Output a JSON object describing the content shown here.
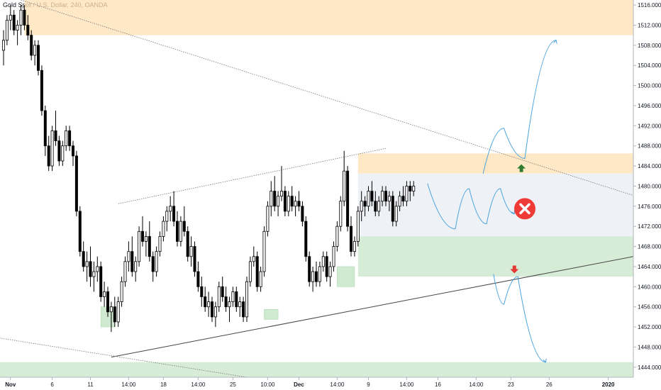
{
  "header": {
    "title": "Gold Spot / U.S. Dollar, 240, OANDA"
  },
  "colors": {
    "candle": "#000000",
    "resistance_zone": "#ffe0b2",
    "support_zone": "#c8e6c9",
    "range_box": "#eceff5",
    "projection": "#4aa3df",
    "trendline": "#444444",
    "up_arrow": "#2e7d32",
    "down_arrow": "#e53935",
    "cancel_icon": "#ef3b36"
  },
  "chart_data": {
    "type": "candlestick",
    "title": "Gold Spot / U.S. Dollar, 240, OANDA",
    "ylim": [
      1442,
      1517
    ],
    "y_ticks": [
      "1516.000",
      "1512.000",
      "1508.000",
      "1504.000",
      "1500.000",
      "1496.000",
      "1492.000",
      "1488.000",
      "1484.000",
      "1480.000",
      "1476.000",
      "1472.000",
      "1468.000",
      "1464.000",
      "1460.000",
      "1456.000",
      "1452.000",
      "1448.000",
      "1444.000"
    ],
    "y_tick_values": [
      1516,
      1512,
      1508,
      1504,
      1500,
      1496,
      1492,
      1488,
      1484,
      1480,
      1476,
      1472,
      1468,
      1464,
      1460,
      1456,
      1452,
      1448,
      1444
    ],
    "x_ticks": [
      {
        "label": "Nov",
        "i": 2
      },
      {
        "label": "6",
        "i": 14
      },
      {
        "label": "11",
        "i": 25
      },
      {
        "label": "14:00",
        "i": 36
      },
      {
        "label": "18",
        "i": 46
      },
      {
        "label": "14:00",
        "i": 56
      },
      {
        "label": "25",
        "i": 66
      },
      {
        "label": "10:00",
        "i": 76
      },
      {
        "label": "Dec",
        "i": 85
      },
      {
        "label": "14:00",
        "i": 96
      },
      {
        "label": "9",
        "i": 105
      },
      {
        "label": "14:00",
        "i": 116
      },
      {
        "label": "16",
        "i": 125
      },
      {
        "label": "14:00",
        "i": 136
      },
      {
        "label": "23",
        "i": 146
      },
      {
        "label": "26",
        "i": 157
      },
      {
        "label": "2020",
        "i": 174
      }
    ],
    "ohlc": [
      [
        1507,
        1511,
        1504,
        1509
      ],
      [
        1509,
        1514,
        1508,
        1513
      ],
      [
        1513,
        1516,
        1511,
        1514
      ],
      [
        1514,
        1515,
        1510,
        1511
      ],
      [
        1511,
        1513,
        1508,
        1512
      ],
      [
        1512,
        1516,
        1510,
        1515
      ],
      [
        1515,
        1516,
        1511,
        1512
      ],
      [
        1512,
        1514,
        1509,
        1510
      ],
      [
        1510,
        1511,
        1505,
        1506
      ],
      [
        1506,
        1509,
        1504,
        1508
      ],
      [
        1508,
        1509,
        1502,
        1503
      ],
      [
        1503,
        1504,
        1494,
        1495
      ],
      [
        1495,
        1496,
        1486,
        1488
      ],
      [
        1488,
        1490,
        1483,
        1484
      ],
      [
        1484,
        1492,
        1483,
        1491
      ],
      [
        1491,
        1495,
        1488,
        1489
      ],
      [
        1489,
        1490,
        1484,
        1485
      ],
      [
        1485,
        1489,
        1484,
        1488
      ],
      [
        1488,
        1492,
        1487,
        1491
      ],
      [
        1491,
        1492,
        1487,
        1488
      ],
      [
        1488,
        1489,
        1484,
        1486
      ],
      [
        1486,
        1487,
        1474,
        1475
      ],
      [
        1475,
        1476,
        1466,
        1467
      ],
      [
        1467,
        1469,
        1463,
        1464
      ],
      [
        1464,
        1467,
        1461,
        1465
      ],
      [
        1465,
        1468,
        1460,
        1462
      ],
      [
        1462,
        1465,
        1459,
        1463
      ],
      [
        1463,
        1466,
        1461,
        1464
      ],
      [
        1464,
        1465,
        1457,
        1458
      ],
      [
        1458,
        1461,
        1456,
        1459
      ],
      [
        1459,
        1460,
        1454,
        1455
      ],
      [
        1455,
        1457,
        1451,
        1456
      ],
      [
        1456,
        1458,
        1452,
        1453
      ],
      [
        1453,
        1458,
        1452,
        1457
      ],
      [
        1457,
        1462,
        1456,
        1461
      ],
      [
        1461,
        1466,
        1460,
        1465
      ],
      [
        1465,
        1469,
        1463,
        1467
      ],
      [
        1467,
        1470,
        1462,
        1463
      ],
      [
        1463,
        1466,
        1461,
        1465
      ],
      [
        1465,
        1472,
        1464,
        1471
      ],
      [
        1471,
        1474,
        1468,
        1469
      ],
      [
        1469,
        1471,
        1466,
        1470
      ],
      [
        1470,
        1473,
        1465,
        1466
      ],
      [
        1466,
        1467,
        1461,
        1463
      ],
      [
        1463,
        1468,
        1462,
        1467
      ],
      [
        1467,
        1471,
        1466,
        1470
      ],
      [
        1470,
        1474,
        1469,
        1473
      ],
      [
        1473,
        1476,
        1471,
        1475
      ],
      [
        1475,
        1478,
        1473,
        1476
      ],
      [
        1476,
        1479,
        1472,
        1473
      ],
      [
        1473,
        1475,
        1468,
        1469
      ],
      [
        1469,
        1474,
        1468,
        1473
      ],
      [
        1473,
        1476,
        1470,
        1471
      ],
      [
        1471,
        1472,
        1465,
        1466
      ],
      [
        1466,
        1470,
        1464,
        1468
      ],
      [
        1468,
        1469,
        1462,
        1463
      ],
      [
        1463,
        1465,
        1459,
        1460
      ],
      [
        1460,
        1462,
        1456,
        1458
      ],
      [
        1458,
        1460,
        1455,
        1456
      ],
      [
        1456,
        1459,
        1454,
        1457
      ],
      [
        1457,
        1458,
        1453,
        1454
      ],
      [
        1454,
        1457,
        1452,
        1456
      ],
      [
        1456,
        1461,
        1455,
        1460
      ],
      [
        1460,
        1462,
        1457,
        1458
      ],
      [
        1458,
        1460,
        1455,
        1456
      ],
      [
        1456,
        1458,
        1453,
        1457
      ],
      [
        1457,
        1460,
        1456,
        1459
      ],
      [
        1459,
        1460,
        1455,
        1456
      ],
      [
        1456,
        1458,
        1454,
        1457
      ],
      [
        1457,
        1458,
        1453,
        1454
      ],
      [
        1454,
        1462,
        1453,
        1461
      ],
      [
        1461,
        1466,
        1460,
        1465
      ],
      [
        1465,
        1468,
        1464,
        1466
      ],
      [
        1466,
        1467,
        1459,
        1460
      ],
      [
        1460,
        1464,
        1459,
        1463
      ],
      [
        1463,
        1472,
        1462,
        1471
      ],
      [
        1471,
        1477,
        1470,
        1476
      ],
      [
        1476,
        1481,
        1474,
        1479
      ],
      [
        1479,
        1482,
        1475,
        1476
      ],
      [
        1476,
        1479,
        1474,
        1478
      ],
      [
        1478,
        1484,
        1477,
        1479
      ],
      [
        1479,
        1480,
        1474,
        1475
      ],
      [
        1475,
        1479,
        1474,
        1478
      ],
      [
        1478,
        1480,
        1475,
        1476
      ],
      [
        1476,
        1478,
        1474,
        1477
      ],
      [
        1477,
        1479,
        1475,
        1476
      ],
      [
        1476,
        1477,
        1472,
        1473
      ],
      [
        1473,
        1474,
        1465,
        1466
      ],
      [
        1466,
        1467,
        1460,
        1461
      ],
      [
        1461,
        1464,
        1459,
        1463
      ],
      [
        1463,
        1465,
        1460,
        1461
      ],
      [
        1461,
        1465,
        1460,
        1464
      ],
      [
        1464,
        1467,
        1463,
        1466
      ],
      [
        1466,
        1467,
        1461,
        1462
      ],
      [
        1462,
        1465,
        1460,
        1464
      ],
      [
        1464,
        1469,
        1463,
        1468
      ],
      [
        1468,
        1473,
        1467,
        1472
      ],
      [
        1472,
        1478,
        1471,
        1477
      ],
      [
        1477,
        1487,
        1476,
        1483
      ],
      [
        1483,
        1484,
        1471,
        1472
      ],
      [
        1472,
        1474,
        1466,
        1467
      ],
      [
        1467,
        1470,
        1466,
        1469
      ],
      [
        1469,
        1476,
        1468,
        1475
      ],
      [
        1475,
        1479,
        1473,
        1477
      ],
      [
        1477,
        1478,
        1474,
        1476
      ],
      [
        1476,
        1480,
        1475,
        1479
      ],
      [
        1479,
        1481,
        1476,
        1477
      ],
      [
        1477,
        1479,
        1474,
        1475
      ],
      [
        1475,
        1478,
        1474,
        1477
      ],
      [
        1477,
        1480,
        1476,
        1479
      ],
      [
        1479,
        1480,
        1476,
        1477
      ],
      [
        1477,
        1479,
        1475,
        1478
      ],
      [
        1478,
        1479,
        1472,
        1473
      ],
      [
        1473,
        1477,
        1472,
        1476
      ],
      [
        1476,
        1479,
        1475,
        1478
      ],
      [
        1478,
        1480,
        1476,
        1477
      ],
      [
        1477,
        1481,
        1476,
        1480
      ],
      [
        1480,
        1481,
        1477,
        1479
      ],
      [
        1479,
        1481,
        1478,
        1480
      ]
    ],
    "zones": [
      {
        "kind": "resistance",
        "from": 1510,
        "to": 1517,
        "i0": 6,
        "i1": 999
      },
      {
        "kind": "resistance",
        "from": 1482.5,
        "to": 1486.5,
        "i0": 102,
        "i1": 999
      },
      {
        "kind": "range",
        "from": 1470,
        "to": 1482.5,
        "i0": 102,
        "i1": 999
      },
      {
        "kind": "support",
        "from": 1462,
        "to": 1470,
        "i0": 102,
        "i1": 999
      },
      {
        "kind": "support",
        "from": 1442,
        "to": 1445,
        "i0": -5,
        "i1": 999
      }
    ],
    "small_boxes": [
      {
        "i0": 28,
        "i1": 32,
        "from": 1452,
        "to": 1456
      },
      {
        "i0": 75,
        "i1": 79,
        "from": 1453.5,
        "to": 1455.5
      },
      {
        "i0": 96,
        "i1": 101,
        "from": 1460,
        "to": 1464
      }
    ],
    "lines": [
      {
        "style": "solid",
        "i0": 31,
        "p0": 1446,
        "i1": 200,
        "p1": 1468.5
      },
      {
        "style": "dotted",
        "i0": 33,
        "p0": 1476.5,
        "i1": 110,
        "p1": 1487.5
      },
      {
        "style": "dotted",
        "i0": 5,
        "p0": 1517,
        "i1": 200,
        "p1": 1474
      },
      {
        "style": "dotted",
        "i0": -3,
        "p0": 1450,
        "i1": 70,
        "p1": 1442
      }
    ],
    "projections": [
      {
        "points": [
          [
            122,
            1480.5
          ],
          [
            130,
            1471.5
          ],
          [
            134,
            1479.5
          ],
          [
            139,
            1472.5
          ],
          [
            143,
            1479.5
          ],
          [
            147,
            1474.5
          ]
        ]
      },
      {
        "points": [
          [
            138,
            1482.5
          ],
          [
            144,
            1491.5
          ],
          [
            150,
            1485.5
          ],
          [
            159,
            1509
          ]
        ]
      },
      {
        "points": [
          [
            141,
            1462.5
          ],
          [
            144,
            1456.5
          ],
          [
            148,
            1462
          ],
          [
            156,
            1445
          ]
        ]
      }
    ],
    "markers": [
      {
        "kind": "up-arrow",
        "i": 149,
        "p": 1483.5
      },
      {
        "kind": "down-arrow",
        "i": 147,
        "p": 1463.5
      },
      {
        "kind": "cancel",
        "i": 150,
        "p": 1475.5
      }
    ]
  }
}
